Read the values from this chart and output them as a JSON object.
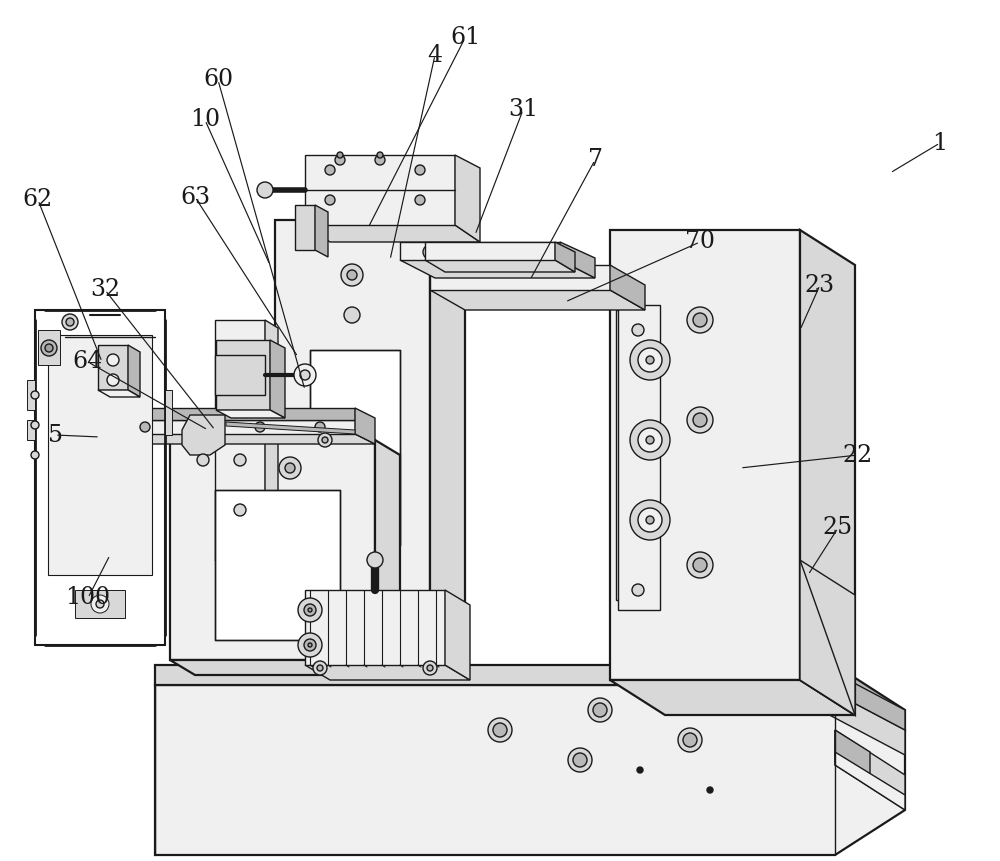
{
  "background_color": "#ffffff",
  "lc": "#1a1a1a",
  "lw": 1.0,
  "tlw": 1.6,
  "white": "#ffffff",
  "lgray": "#f0f0f0",
  "mgray": "#d8d8d8",
  "dgray": "#b8b8b8",
  "xgray": "#a0a0a0",
  "figsize": [
    10.0,
    8.61
  ],
  "dpi": 100,
  "annots": [
    [
      "1",
      940,
      143,
      890,
      173
    ],
    [
      "4",
      435,
      55,
      390,
      260
    ],
    [
      "5",
      55,
      435,
      100,
      437
    ],
    [
      "7",
      595,
      160,
      530,
      280
    ],
    [
      "10",
      205,
      120,
      270,
      265
    ],
    [
      "22",
      858,
      455,
      740,
      468
    ],
    [
      "23",
      820,
      285,
      800,
      330
    ],
    [
      "25",
      838,
      528,
      808,
      575
    ],
    [
      "31",
      523,
      110,
      475,
      235
    ],
    [
      "32",
      105,
      290,
      215,
      430
    ],
    [
      "60",
      218,
      80,
      305,
      390
    ],
    [
      "61",
      465,
      38,
      368,
      228
    ],
    [
      "62",
      38,
      200,
      102,
      362
    ],
    [
      "63",
      195,
      197,
      298,
      357
    ],
    [
      "64",
      88,
      362,
      208,
      430
    ],
    [
      "70",
      700,
      242,
      565,
      302
    ],
    [
      "100",
      88,
      598,
      110,
      555
    ]
  ]
}
